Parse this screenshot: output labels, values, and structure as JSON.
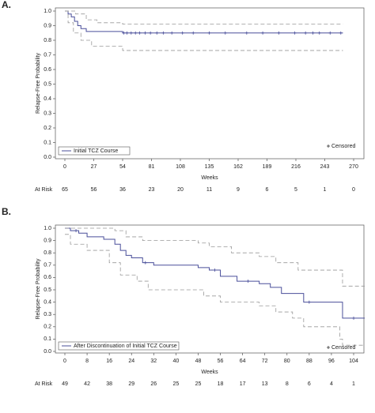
{
  "chart_data": [
    {
      "type": "line",
      "panel_label": "A.",
      "y_label": "Relapse-Free Probability",
      "x_label": "Weeks",
      "xlim": [
        0,
        270
      ],
      "xticks": [
        0,
        27,
        54,
        81,
        108,
        135,
        162,
        189,
        216,
        243,
        270
      ],
      "ylim": [
        0,
        1
      ],
      "yticks": [
        {
          "value": 0,
          "label": "0.0"
        },
        {
          "value": 0.1,
          "label": "0.1"
        },
        {
          "value": 0.2,
          "label": "0.2"
        },
        {
          "value": 0.3,
          "label": "0.3"
        },
        {
          "value": 0.4,
          "label": "0.4"
        },
        {
          "value": 0.5,
          "label": "0.5"
        },
        {
          "value": 0.6,
          "label": "0.6"
        },
        {
          "value": 0.7,
          "label": "0.7"
        },
        {
          "value": 0.8,
          "label": "0.8"
        },
        {
          "value": 0.9,
          "label": "0.9"
        },
        {
          "value": 1,
          "label": "1.0"
        }
      ],
      "series": [
        {
          "name": "Initial TCZ Course",
          "color": "#4a4f9a",
          "step": true,
          "x": [
            0,
            3,
            6,
            9,
            12,
            15,
            20,
            54,
            260
          ],
          "values": [
            1,
            0.98,
            0.96,
            0.93,
            0.9,
            0.88,
            0.86,
            0.85,
            0.85
          ]
        },
        {
          "color": "#999999",
          "step": true,
          "dashed": true,
          "x": [
            0,
            6,
            10,
            20,
            30,
            54,
            260
          ],
          "values": [
            1,
            1,
            0.98,
            0.94,
            0.92,
            0.91,
            0.91
          ]
        },
        {
          "color": "#999999",
          "step": true,
          "dashed": true,
          "x": [
            0,
            3,
            8,
            15,
            25,
            54,
            260
          ],
          "values": [
            1,
            0.92,
            0.85,
            0.8,
            0.76,
            0.73,
            0.73
          ]
        },
        {
          "name": "Censored",
          "color": "#4a4f9a",
          "marker": "+",
          "x": [
            55,
            58,
            62,
            66,
            70,
            75,
            80,
            86,
            92,
            100,
            110,
            120,
            135,
            150,
            170,
            185,
            200,
            215,
            225,
            232,
            238,
            248,
            258
          ],
          "values": [
            0.85,
            0.85,
            0.85,
            0.85,
            0.85,
            0.85,
            0.85,
            0.85,
            0.85,
            0.85,
            0.85,
            0.85,
            0.85,
            0.85,
            0.85,
            0.85,
            0.85,
            0.85,
            0.85,
            0.85,
            0.85,
            0.85,
            0.85
          ]
        }
      ],
      "at_risk": {
        "label": "At Risk",
        "values": [
          65,
          56,
          36,
          23,
          20,
          11,
          9,
          6,
          5,
          1,
          0
        ]
      }
    },
    {
      "type": "line",
      "panel_label": "B.",
      "y_label": "Relapse-Free Probability",
      "x_label": "Weeks",
      "xlim": [
        0,
        104
      ],
      "xticks": [
        0,
        8,
        16,
        24,
        32,
        40,
        48,
        56,
        64,
        72,
        80,
        88,
        96,
        104
      ],
      "ylim": [
        0,
        1
      ],
      "yticks": [
        {
          "value": 0,
          "label": "0.0"
        },
        {
          "value": 0.1,
          "label": "0.1"
        },
        {
          "value": 0.2,
          "label": "0.2"
        },
        {
          "value": 0.3,
          "label": "0.3"
        },
        {
          "value": 0.4,
          "label": "0.4"
        },
        {
          "value": 0.5,
          "label": "0.5"
        },
        {
          "value": 0.6,
          "label": "0.6"
        },
        {
          "value": 0.7,
          "label": "0.7"
        },
        {
          "value": 0.8,
          "label": "0.8"
        },
        {
          "value": 0.9,
          "label": "0.9"
        },
        {
          "value": 1,
          "label": "1.0"
        }
      ],
      "series": [
        {
          "name": "After Discontinuation of Initial TCZ Course",
          "color": "#4a4f9a",
          "step": true,
          "x": [
            0,
            2,
            5,
            8,
            14,
            18,
            20,
            22,
            24,
            28,
            32,
            48,
            52,
            56,
            62,
            70,
            74,
            78,
            86,
            100,
            108
          ],
          "values": [
            1,
            0.98,
            0.96,
            0.93,
            0.91,
            0.87,
            0.82,
            0.78,
            0.76,
            0.72,
            0.7,
            0.68,
            0.66,
            0.61,
            0.57,
            0.55,
            0.52,
            0.47,
            0.4,
            0.27,
            0.27
          ]
        },
        {
          "color": "#999999",
          "step": true,
          "dashed": true,
          "x": [
            0,
            10,
            18,
            22,
            28,
            48,
            52,
            60,
            70,
            76,
            84,
            100,
            108
          ],
          "values": [
            1,
            1,
            0.98,
            0.93,
            0.9,
            0.88,
            0.85,
            0.8,
            0.77,
            0.72,
            0.66,
            0.53,
            0.53
          ]
        },
        {
          "color": "#999999",
          "step": true,
          "dashed": true,
          "x": [
            0,
            2,
            8,
            16,
            20,
            26,
            30,
            50,
            56,
            70,
            76,
            82,
            86,
            99,
            100,
            108
          ],
          "values": [
            0.95,
            0.87,
            0.82,
            0.72,
            0.62,
            0.57,
            0.5,
            0.45,
            0.4,
            0.37,
            0.32,
            0.27,
            0.2,
            0.1,
            0.05,
            0.05
          ]
        },
        {
          "name": "Censored",
          "color": "#4a4f9a",
          "marker": "+",
          "x": [
            4,
            29,
            54,
            66,
            88,
            104
          ],
          "values": [
            0.98,
            0.72,
            0.66,
            0.57,
            0.4,
            0.27
          ]
        }
      ],
      "at_risk": {
        "label": "At Risk",
        "values": [
          49,
          42,
          38,
          29,
          26,
          25,
          25,
          18,
          17,
          13,
          8,
          6,
          4,
          1
        ]
      }
    }
  ]
}
